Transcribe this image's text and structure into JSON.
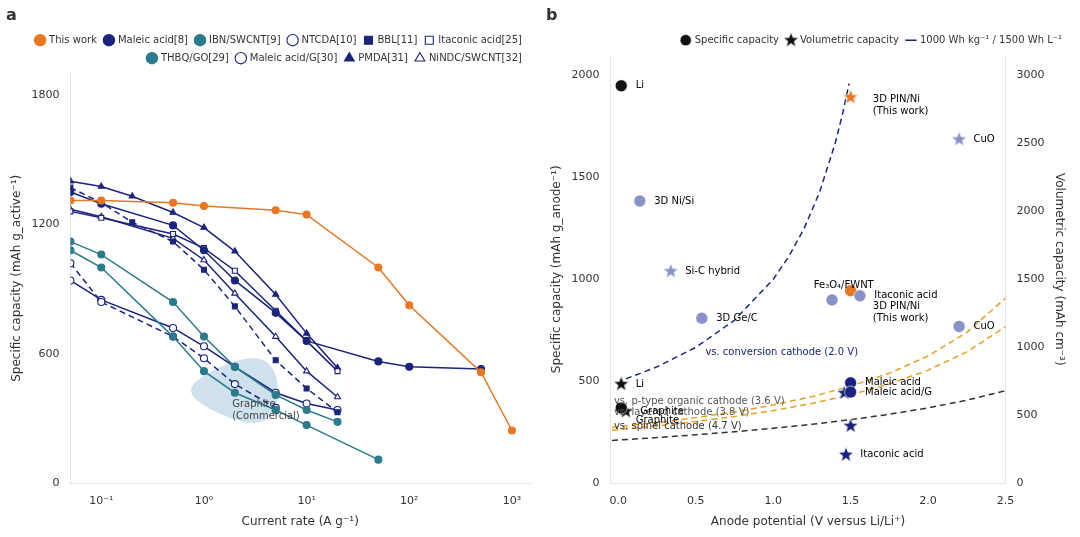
{
  "chart_data": [
    {
      "type": "line",
      "title": "a",
      "xlabel": "Current rate (A g⁻¹)",
      "ylabel": "Specific capacity (mAh g_active⁻¹)",
      "log": "x",
      "xlim": [
        0.05,
        1500
      ],
      "xticks": [
        {
          "value": 0.1,
          "label": "10⁻¹"
        },
        {
          "value": 1,
          "label": "10⁰"
        },
        {
          "value": 10,
          "label": "10¹"
        },
        {
          "value": 100,
          "label": "10²"
        },
        {
          "value": 1000,
          "label": "10³"
        }
      ],
      "ylim": [
        0,
        1900
      ],
      "yticks": [
        0,
        600,
        1200,
        1800
      ],
      "grid": false,
      "legend": "upper right",
      "series": [
        {
          "name": "This work",
          "x": [
            0.05,
            0.1,
            0.5,
            1,
            5,
            10,
            50,
            100,
            500,
            1000
          ],
          "values": [
            1310,
            1310,
            1300,
            1285,
            1265,
            1245,
            1000,
            825,
            515,
            245
          ],
          "color": "#E87722",
          "marker": "circle",
          "line_style": "solid"
        },
        {
          "name": "Maleic acid[8]",
          "x": [
            0.05,
            0.1,
            0.5,
            1,
            2,
            5,
            10,
            50,
            100,
            500
          ],
          "values": [
            1350,
            1295,
            1195,
            1080,
            940,
            790,
            660,
            565,
            540,
            530
          ],
          "color": "#1a237e",
          "marker": "circle",
          "line_style": "solid"
        },
        {
          "name": "IBN/SWCNT[9]",
          "x": [
            0.05,
            0.1,
            0.5,
            1,
            2,
            5,
            10,
            50
          ],
          "values": [
            1080,
            1000,
            680,
            520,
            420,
            340,
            270,
            110
          ],
          "color": "#2a7b8c",
          "marker": "circle",
          "line_style": "solid"
        },
        {
          "name": "NTCDA[10]",
          "x": [
            0.05,
            0.1,
            0.5,
            1,
            2,
            5
          ],
          "values": [
            1020,
            840,
            680,
            580,
            460,
            350
          ],
          "color": "#1a237e",
          "marker": "circle-open",
          "line_style": "dashed"
        },
        {
          "name": "BBL[11]",
          "x": [
            0.05,
            0.1,
            0.2,
            0.5,
            1,
            2,
            5,
            10,
            20
          ],
          "values": [
            1370,
            1300,
            1210,
            1120,
            990,
            820,
            570,
            440,
            330
          ],
          "color": "#1a237e",
          "marker": "square",
          "line_style": "dashed"
        },
        {
          "name": "Itaconic acid[25]",
          "x": [
            0.05,
            0.1,
            0.5,
            1,
            2,
            5,
            10,
            20
          ],
          "values": [
            1260,
            1230,
            1155,
            1090,
            985,
            800,
            660,
            520
          ],
          "color": "#1a237e",
          "marker": "square-open",
          "line_style": "solid"
        },
        {
          "name": "THBQ/GO[29]",
          "x": [
            0.05,
            0.1,
            0.5,
            1,
            2,
            5,
            10,
            20
          ],
          "values": [
            1120,
            1060,
            840,
            680,
            540,
            410,
            340,
            285
          ],
          "color": "#2a7b8c",
          "marker": "circle",
          "line_style": "solid"
        },
        {
          "name": "Maleic acid/G[30]",
          "x": [
            0.05,
            0.1,
            0.5,
            1,
            2,
            5,
            10,
            20
          ],
          "values": [
            940,
            850,
            720,
            635,
            540,
            420,
            370,
            340
          ],
          "color": "#1a237e",
          "marker": "circle-open",
          "line_style": "solid"
        },
        {
          "name": "PMDA[31]",
          "x": [
            0.05,
            0.1,
            0.2,
            0.5,
            1,
            2,
            5,
            10,
            20
          ],
          "values": [
            1400,
            1375,
            1330,
            1255,
            1185,
            1075,
            875,
            695,
            535
          ],
          "color": "#1a237e",
          "marker": "triangle",
          "line_style": "solid"
        },
        {
          "name": "NiNDC/SWCNT[32]",
          "x": [
            0.05,
            0.1,
            0.5,
            1,
            2,
            5,
            10,
            20
          ],
          "values": [
            1270,
            1235,
            1135,
            1035,
            880,
            680,
            520,
            400
          ],
          "color": "#1a237e",
          "marker": "triangle-open",
          "line_style": "solid"
        }
      ],
      "ellipse": {
        "x": 3.0,
        "y": 430,
        "width": 4.5,
        "height": 300,
        "color": "#a8c8df"
      },
      "annotations": [
        {
          "text": "Graphite\n(Commercial)",
          "x": 1.8,
          "y": 340,
          "color": "#444444"
        }
      ]
    },
    {
      "type": "scatter",
      "title": "b",
      "xlabel": "Anode potential (V versus Li/Li⁺)",
      "ylabel": "Specific capacity (mAh g_anode⁻¹)",
      "y2label": "Volumetric capacity (mAh cm⁻³)",
      "xlim": [
        -0.05,
        2.5
      ],
      "xticks": [
        {
          "value": 0,
          "label": "0.0"
        },
        0.5,
        {
          "value": 1,
          "label": "1.0"
        },
        1.5,
        {
          "value": 2,
          "label": "2.0"
        },
        2.5
      ],
      "ylim": [
        0,
        2100
      ],
      "yticks": [
        0,
        500,
        1000,
        1500,
        2000
      ],
      "y2lim": [
        0,
        3150
      ],
      "y2ticks": [
        0,
        500,
        1000,
        1500,
        2000,
        2500,
        3000
      ],
      "grid": false,
      "legend": "center right",
      "series": [
        {
          "name": "Specific capacity",
          "type": "scatter",
          "marker": "circle",
          "x": [
            0.02,
            0.14,
            0.54,
            0.02,
            1.38,
            1.5,
            1.56,
            2.2,
            1.5,
            1.5
          ],
          "values": [
            1950,
            1385,
            810,
            370,
            900,
            945,
            920,
            770,
            493,
            448
          ],
          "colors": [
            "#111111",
            "#8892c8",
            "#8892c8",
            "#111111",
            "#8892c8",
            "#E87722",
            "#8892c8",
            "#8892c8",
            "#1a237e",
            "#1a237e"
          ]
        },
        {
          "name": "Volumetric capacity",
          "type": "scatter",
          "marker": "star",
          "axis": "y2",
          "x": [
            0.02,
            0.05,
            0.34,
            1.5,
            2.2,
            1.46,
            1.5,
            1.47
          ],
          "values": [
            730,
            530,
            1560,
            2840,
            2530,
            665,
            422,
            210
          ],
          "colors": [
            "#111111",
            "#111111",
            "#8892c8",
            "#E87722",
            "#8892c8",
            "#1a237e",
            "#1a237e",
            "#1a237e"
          ]
        },
        {
          "name": "1000 Wh kg⁻¹ / 1500 Wh L⁻¹",
          "type": "line",
          "marker": "none",
          "line_style": "dashed",
          "color": "#1a237e",
          "x": [
            0.05,
            0.25,
            0.5,
            0.75,
            1.0,
            1.1,
            1.2,
            1.3,
            1.4,
            1.45,
            1.49
          ],
          "values": [
            512.82,
            571.43,
            666.67,
            800,
            1000,
            1111.11,
            1250,
            1428.57,
            1666.67,
            1818.18,
            1960.78
          ]
        },
        {
          "type": "line",
          "marker": "none",
          "line_style": "dashed",
          "color": "#E8A020",
          "x": [
            -0.04,
            0.25,
            0.5,
            0.75,
            1.0,
            1.25,
            1.5,
            1.75,
            2.0,
            2.25,
            2.5
          ],
          "values": [
            274.73,
            298.51,
            322.58,
            350.88,
            384.62,
            425.53,
            476.19,
            540.54,
            625,
            740.74,
            909.09
          ]
        },
        {
          "type": "line",
          "marker": "none",
          "line_style": "dashed",
          "color": "#E8A020",
          "x": [
            -0.04,
            0.25,
            0.5,
            0.75,
            1.0,
            1.25,
            1.5,
            1.75,
            2.0,
            2.25,
            2.5
          ],
          "values": [
            260.42,
            281.69,
            303.03,
            327.87,
            357.14,
            392.16,
            434.78,
            487.8,
            555.56,
            645.16,
            769.23
          ]
        },
        {
          "type": "line",
          "marker": "none",
          "line_style": "dashed",
          "color": "#333333",
          "x": [
            -0.04,
            0.25,
            0.5,
            0.75,
            1.0,
            1.25,
            1.5,
            1.75,
            2.0,
            2.25,
            2.5
          ],
          "values": [
            210.97,
            224.72,
            238.1,
            253.16,
            270.27,
            289.86,
            312.5,
            338.98,
            370.37,
            408.16,
            454.55
          ]
        }
      ],
      "annotations": [
        {
          "text": "vs. conversion cathode (2.0 V)",
          "x": 0.55,
          "y": 640,
          "color": "#1a237e"
        },
        {
          "text": "vs. p-type organic cathode (3.6 V)",
          "x": -0.04,
          "y": 404,
          "color": "#555555"
        },
        {
          "text": "vs. layered cathode (3.8 V)",
          "x": -0.04,
          "y": 348,
          "color": "#555555"
        },
        {
          "text": "vs. spinel cathode (4.7 V)",
          "x": -0.04,
          "y": 278,
          "color": "#333333"
        },
        {
          "text": "Li",
          "x": 0.1,
          "y": 1950
        },
        {
          "text": "3D Ni/Si",
          "x": 0.22,
          "y": 1385
        },
        {
          "text": "3D Ge/C",
          "x": 0.62,
          "y": 810
        },
        {
          "text": "Graphite",
          "x": 0.1,
          "y": 310
        },
        {
          "text": "Fe₃O₄/FWNT",
          "x": 1.25,
          "y": 970
        },
        {
          "text": "Itaconic acid",
          "x": 1.64,
          "y": 920
        },
        {
          "text": "CuO",
          "x": 2.28,
          "y": 770
        },
        {
          "text": "Maleic acid",
          "x": 1.58,
          "y": 493
        },
        {
          "text": "Maleic acid/G",
          "x": 1.58,
          "y": 448
        },
        {
          "text": "3D PIN/Ni\n(This work)",
          "x": 1.63,
          "y": 840
        },
        {
          "text": "Li",
          "x": 0.1,
          "y": 730,
          "axis": "y2"
        },
        {
          "text": "Graphite",
          "x": 0.13,
          "y": 530,
          "axis": "y2"
        },
        {
          "text": "Si-C hybrid",
          "x": 0.42,
          "y": 1560,
          "axis": "y2"
        },
        {
          "text": "3D PIN/Ni\n(This work)",
          "x": 1.63,
          "y": 2780,
          "axis": "y2"
        },
        {
          "text": "CuO",
          "x": 2.28,
          "y": 2530,
          "axis": "y2"
        },
        {
          "text": "Itaconic acid",
          "x": 1.55,
          "y": 210,
          "axis": "y2"
        }
      ]
    }
  ]
}
